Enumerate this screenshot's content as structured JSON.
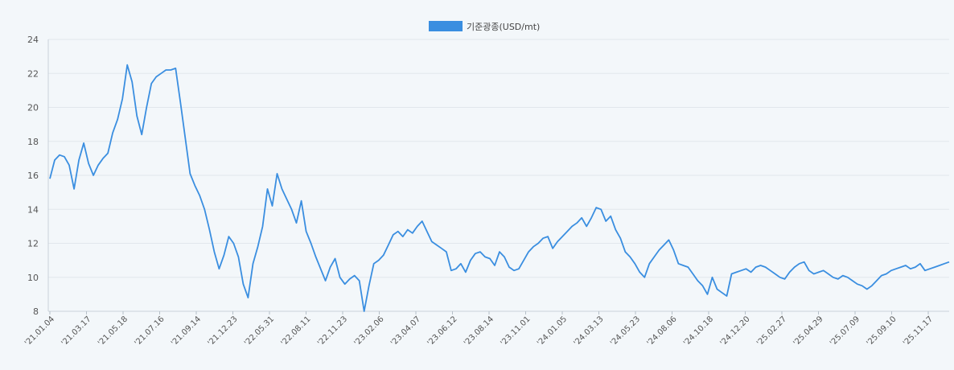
{
  "chart_data": {
    "type": "line",
    "title": "",
    "xlabel": "",
    "ylabel": "",
    "ylim": [
      8,
      24
    ],
    "yticks": [
      8,
      10,
      12,
      14,
      16,
      18,
      20,
      22,
      24
    ],
    "grid": true,
    "legend_position": "top-center",
    "series": [
      {
        "name": "기준광종(USD/mt)",
        "color": "#3a8ee0",
        "values": [
          15.8,
          16.9,
          17.2,
          17.1,
          16.6,
          15.2,
          16.9,
          17.9,
          16.7,
          16.0,
          16.6,
          17.0,
          17.3,
          18.5,
          19.3,
          20.5,
          22.5,
          21.5,
          19.5,
          18.4,
          20.0,
          21.4,
          21.8,
          22.0,
          22.2,
          22.2,
          22.3,
          20.3,
          18.2,
          16.1,
          15.4,
          14.8,
          14.0,
          12.8,
          11.5,
          10.5,
          11.3,
          12.4,
          12.0,
          11.2,
          9.6,
          8.8,
          10.8,
          11.8,
          13.0,
          15.2,
          14.2,
          16.1,
          15.2,
          14.6,
          14.0,
          13.2,
          14.5,
          12.7,
          12.0,
          11.2,
          10.5,
          9.8,
          10.6,
          11.1,
          10.0,
          9.6,
          9.9,
          10.1,
          9.8,
          8.0,
          9.5,
          10.8,
          11.0,
          11.3,
          11.9,
          12.5,
          12.7,
          12.4,
          12.8,
          12.6,
          13.0,
          13.3,
          12.7,
          12.1,
          11.9,
          11.7,
          11.5,
          10.4,
          10.5,
          10.8,
          10.3,
          11.0,
          11.4,
          11.5,
          11.2,
          11.1,
          10.7,
          11.5,
          11.2,
          10.6,
          10.4,
          10.5,
          11.0,
          11.5,
          11.8,
          12.0,
          12.3,
          12.4,
          11.7,
          12.1,
          12.4,
          12.7,
          13.0,
          13.2,
          13.5,
          13.0,
          13.5,
          14.1,
          14.0,
          13.3,
          13.6,
          12.8,
          12.3,
          11.5,
          11.2,
          10.8,
          10.3,
          10.0,
          10.8,
          11.2,
          11.6,
          11.9,
          12.2,
          11.6,
          10.8,
          10.7,
          10.6,
          10.2,
          9.8,
          9.5,
          9.0,
          10.0,
          9.3,
          9.1,
          8.9,
          10.2,
          10.3,
          10.4,
          10.5,
          10.3,
          10.6,
          10.7,
          10.6,
          10.4,
          10.2,
          10.0,
          9.9,
          10.3,
          10.6,
          10.8,
          10.9,
          10.4,
          10.2,
          10.3,
          10.4,
          10.2,
          10.0,
          9.9,
          10.1,
          10.0,
          9.8,
          9.6,
          9.5,
          9.3,
          9.5,
          9.8,
          10.1,
          10.2,
          10.4,
          10.5,
          10.6,
          10.7,
          10.5,
          10.6,
          10.8,
          10.4,
          10.5,
          10.6,
          10.7,
          10.8,
          10.9
        ]
      }
    ],
    "x_tick_labels": [
      "'21.01.04",
      "'21.03.17",
      "'21.05.18",
      "'21.07.16",
      "'21.09.14",
      "'21.12.23",
      "'22.05.31",
      "'22.08.11",
      "'22.11.23",
      "'23.02.06",
      "'23.04.07",
      "'23.06.12",
      "'23.08.14",
      "'23.11.01",
      "'24.01.05",
      "'24.03.13",
      "'24.05.23",
      "'24.08.06",
      "'24.10.18",
      "'24.12.20",
      "'25.02.27",
      "'25.04.29",
      "'25.07.09",
      "'25.09.10",
      "'25.11.17"
    ]
  }
}
